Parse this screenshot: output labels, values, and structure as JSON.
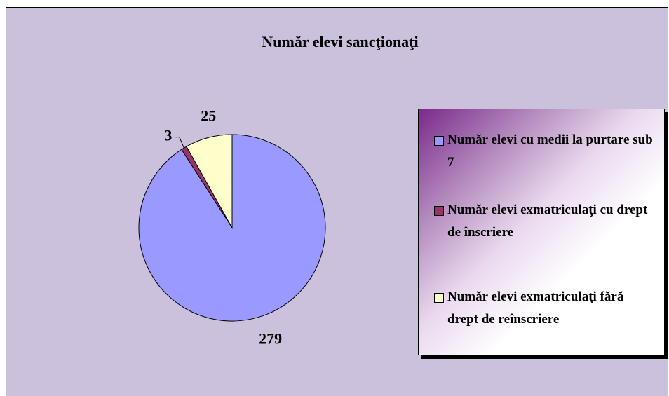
{
  "chart_data": {
    "type": "pie",
    "title": "Număr elevi sancţionaţi",
    "categories": [
      "Număr elevi cu medii la purtare sub 7",
      "Număr elevi exmatriculaţi cu drept de înscriere",
      "Număr elevi exmatriculaţi fără drept de reînscriere"
    ],
    "values": [
      279,
      3,
      25
    ],
    "colors": [
      "#9999ff",
      "#993366",
      "#ffffcc"
    ],
    "legend": "right"
  }
}
